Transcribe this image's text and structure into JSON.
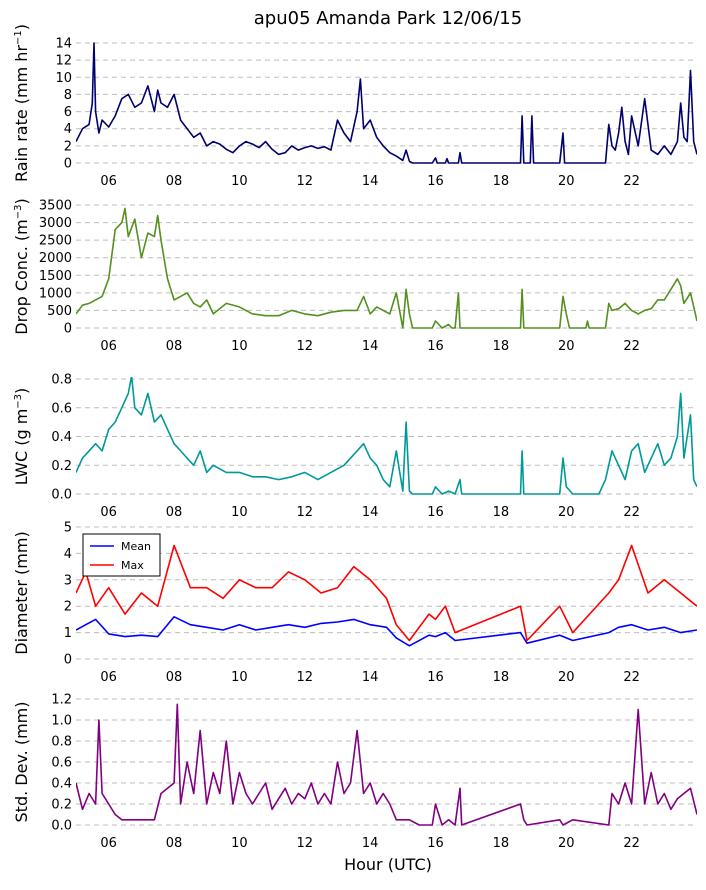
{
  "title": "apu05 Amanda Park 12/06/15",
  "xlabel": "Hour (UTC)",
  "colors": {
    "rain": "#00006e",
    "conc": "#55901f",
    "lwc": "#00999a",
    "mean": "#0000ff",
    "max": "#ff0000",
    "std": "#800080",
    "grid": "#bdbdbd"
  },
  "chart_data": [
    {
      "type": "line",
      "ylabel": "Rain rate (mm hr",
      "ylabel_sup": "−1",
      "ylabel_end": ")",
      "xlim": [
        5.0,
        24.0
      ],
      "ylim": [
        0,
        14
      ],
      "xticks": [
        "06",
        "08",
        "10",
        "12",
        "14",
        "16",
        "18",
        "20",
        "22"
      ],
      "yticks": [
        "0",
        "2",
        "4",
        "6",
        "8",
        "10",
        "12",
        "14"
      ],
      "grid": "horizontal dashed",
      "series": [
        {
          "color_key": "rain",
          "x": [
            5.0,
            5.2,
            5.4,
            5.5,
            5.55,
            5.6,
            5.7,
            5.8,
            6.0,
            6.2,
            6.4,
            6.6,
            6.8,
            7.0,
            7.2,
            7.4,
            7.5,
            7.6,
            7.8,
            8.0,
            8.2,
            8.4,
            8.6,
            8.8,
            9.0,
            9.2,
            9.4,
            9.6,
            9.8,
            10.0,
            10.2,
            10.4,
            10.6,
            10.8,
            11.0,
            11.2,
            11.4,
            11.6,
            11.8,
            12.0,
            12.2,
            12.4,
            12.6,
            12.8,
            13.0,
            13.2,
            13.4,
            13.6,
            13.7,
            13.8,
            14.0,
            14.2,
            14.4,
            14.6,
            14.8,
            15.0,
            15.1,
            15.2,
            15.3,
            15.5,
            15.9,
            16.0,
            16.05,
            16.1,
            16.3,
            16.35,
            16.4,
            16.7,
            16.75,
            16.8,
            17.0,
            18.5,
            18.6,
            18.65,
            18.7,
            18.9,
            18.95,
            19.0,
            19.2,
            19.8,
            19.9,
            19.95,
            20.0,
            20.2,
            21.0,
            21.2,
            21.3,
            21.4,
            21.5,
            21.6,
            21.7,
            21.8,
            21.9,
            22.0,
            22.2,
            22.4,
            22.6,
            22.8,
            23.0,
            23.2,
            23.4,
            23.5,
            23.6,
            23.7,
            23.8,
            23.9,
            24.0
          ],
          "y": [
            2.5,
            4.0,
            4.5,
            7.0,
            14.0,
            6.0,
            3.5,
            5.0,
            4.2,
            5.5,
            7.5,
            8.0,
            6.5,
            7.0,
            9.0,
            6.0,
            8.5,
            7.0,
            6.5,
            8.0,
            5.0,
            4.0,
            3.0,
            3.5,
            2.0,
            2.5,
            2.2,
            1.6,
            1.2,
            2.0,
            2.5,
            2.2,
            1.8,
            2.5,
            1.6,
            1.0,
            1.2,
            2.0,
            1.5,
            1.8,
            2.0,
            1.7,
            1.9,
            1.5,
            5.0,
            3.5,
            2.5,
            6.0,
            9.8,
            4.0,
            5.0,
            3.0,
            2.0,
            1.2,
            0.8,
            0.3,
            1.5,
            0.2,
            0.0,
            0.0,
            0.0,
            0.6,
            0.0,
            0.0,
            0.0,
            0.5,
            0.0,
            0.0,
            1.2,
            0.0,
            0.0,
            0.0,
            0.0,
            5.5,
            0.0,
            0.0,
            5.5,
            0.0,
            0.0,
            0.0,
            3.5,
            0.0,
            0.0,
            0.0,
            0.0,
            0.0,
            4.5,
            2.0,
            1.5,
            3.5,
            6.5,
            2.5,
            1.0,
            5.5,
            2.0,
            7.5,
            1.5,
            1.0,
            2.0,
            1.0,
            2.5,
            7.0,
            3.0,
            2.5,
            10.8,
            2.5,
            1.0
          ]
        }
      ]
    },
    {
      "type": "line",
      "ylabel": "Drop Conc. (m",
      "ylabel_sup": "−3",
      "ylabel_end": ")",
      "xlim": [
        5.0,
        24.0
      ],
      "ylim": [
        0,
        3500
      ],
      "xticks": [
        "06",
        "08",
        "10",
        "12",
        "14",
        "16",
        "18",
        "20",
        "22"
      ],
      "yticks": [
        "0",
        "500",
        "1000",
        "1500",
        "2000",
        "2500",
        "3000",
        "3500"
      ],
      "grid": "horizontal dashed",
      "series": [
        {
          "color_key": "conc",
          "x": [
            5.0,
            5.2,
            5.4,
            5.6,
            5.8,
            6.0,
            6.2,
            6.4,
            6.5,
            6.6,
            6.8,
            7.0,
            7.2,
            7.4,
            7.5,
            7.6,
            7.8,
            8.0,
            8.2,
            8.4,
            8.6,
            8.8,
            9.0,
            9.2,
            9.6,
            10.0,
            10.4,
            10.8,
            11.2,
            11.6,
            12.0,
            12.4,
            12.8,
            13.2,
            13.6,
            13.8,
            14.0,
            14.2,
            14.4,
            14.6,
            14.8,
            15.0,
            15.1,
            15.2,
            15.3,
            15.5,
            15.9,
            16.0,
            16.2,
            16.4,
            16.5,
            16.6,
            16.7,
            16.75,
            16.8,
            16.9,
            17.0,
            18.5,
            18.6,
            18.65,
            18.7,
            18.8,
            19.8,
            19.9,
            20.0,
            20.1,
            20.2,
            20.6,
            20.65,
            20.7,
            21.0,
            21.2,
            21.3,
            21.4,
            21.6,
            21.8,
            22.0,
            22.2,
            22.4,
            22.6,
            22.8,
            23.0,
            23.2,
            23.4,
            23.5,
            23.6,
            23.8,
            24.0
          ],
          "y": [
            400,
            650,
            700,
            800,
            900,
            1400,
            2800,
            3000,
            3400,
            2600,
            3100,
            2000,
            2700,
            2600,
            3200,
            2500,
            1400,
            800,
            900,
            1000,
            700,
            600,
            800,
            400,
            700,
            600,
            400,
            350,
            350,
            500,
            400,
            350,
            450,
            500,
            500,
            900,
            400,
            600,
            500,
            400,
            1000,
            0,
            1100,
            400,
            0,
            0,
            0,
            200,
            0,
            100,
            0,
            0,
            1000,
            0,
            0,
            0,
            0,
            0,
            0,
            1100,
            0,
            0,
            0,
            900,
            400,
            0,
            0,
            0,
            200,
            0,
            0,
            0,
            700,
            500,
            550,
            700,
            500,
            400,
            500,
            550,
            800,
            800,
            1100,
            1400,
            1200,
            700,
            1000,
            200
          ]
        }
      ]
    },
    {
      "type": "line",
      "ylabel": "LWC (g m",
      "ylabel_sup": "−3",
      "ylabel_end": ")",
      "xlim": [
        5.0,
        24.0
      ],
      "ylim": [
        0,
        0.8
      ],
      "xticks": [
        "06",
        "08",
        "10",
        "12",
        "14",
        "16",
        "18",
        "20",
        "22"
      ],
      "yticks": [
        "0.0",
        "0.2",
        "0.4",
        "0.6",
        "0.8"
      ],
      "grid": "horizontal dashed",
      "series": [
        {
          "color_key": "lwc",
          "x": [
            5.0,
            5.2,
            5.4,
            5.6,
            5.8,
            6.0,
            6.2,
            6.4,
            6.6,
            6.7,
            6.8,
            7.0,
            7.2,
            7.4,
            7.6,
            7.8,
            8.0,
            8.2,
            8.4,
            8.6,
            8.8,
            9.0,
            9.2,
            9.6,
            10.0,
            10.4,
            10.8,
            11.2,
            11.6,
            12.0,
            12.4,
            12.8,
            13.2,
            13.6,
            13.8,
            14.0,
            14.2,
            14.4,
            14.6,
            14.8,
            15.0,
            15.1,
            15.2,
            15.3,
            15.5,
            15.9,
            16.0,
            16.2,
            16.4,
            16.6,
            16.75,
            16.8,
            17.0,
            18.5,
            18.6,
            18.65,
            18.7,
            18.8,
            19.8,
            19.9,
            20.0,
            20.2,
            20.5,
            21.0,
            21.2,
            21.4,
            21.6,
            21.8,
            22.0,
            22.2,
            22.4,
            22.6,
            22.8,
            23.0,
            23.2,
            23.4,
            23.5,
            23.6,
            23.8,
            23.9,
            24.0
          ],
          "y": [
            0.15,
            0.25,
            0.3,
            0.35,
            0.3,
            0.45,
            0.5,
            0.6,
            0.7,
            0.82,
            0.6,
            0.55,
            0.7,
            0.5,
            0.55,
            0.45,
            0.35,
            0.3,
            0.25,
            0.2,
            0.3,
            0.15,
            0.2,
            0.15,
            0.15,
            0.12,
            0.12,
            0.1,
            0.12,
            0.15,
            0.1,
            0.15,
            0.2,
            0.3,
            0.35,
            0.25,
            0.2,
            0.1,
            0.05,
            0.3,
            0.02,
            0.5,
            0.02,
            0.0,
            0.0,
            0.0,
            0.05,
            0.0,
            0.02,
            0.0,
            0.1,
            0.0,
            0.0,
            0.0,
            0.0,
            0.3,
            0.0,
            0.0,
            0.0,
            0.25,
            0.05,
            0.0,
            0.0,
            0.0,
            0.1,
            0.3,
            0.2,
            0.1,
            0.3,
            0.35,
            0.15,
            0.25,
            0.35,
            0.2,
            0.25,
            0.4,
            0.7,
            0.25,
            0.55,
            0.1,
            0.05
          ]
        }
      ]
    },
    {
      "type": "line",
      "ylabel": "Diameter (mm)",
      "xlim": [
        5.0,
        24.0
      ],
      "ylim": [
        0,
        5
      ],
      "xticks": [
        "06",
        "08",
        "10",
        "12",
        "14",
        "16",
        "18",
        "20",
        "22"
      ],
      "yticks": [
        "0",
        "1",
        "2",
        "3",
        "4",
        "5"
      ],
      "grid": "horizontal dashed",
      "legend_position": "upper-left",
      "series": [
        {
          "name": "Mean",
          "color_key": "mean",
          "x": [
            5.0,
            5.3,
            5.6,
            6.0,
            6.5,
            7.0,
            7.5,
            8.0,
            8.5,
            9.0,
            9.5,
            10.0,
            10.5,
            11.0,
            11.5,
            12.0,
            12.5,
            13.0,
            13.5,
            14.0,
            14.5,
            14.8,
            15.2,
            15.8,
            16.0,
            16.3,
            16.6,
            18.6,
            18.8,
            19.8,
            20.2,
            21.3,
            21.6,
            22.0,
            22.5,
            23.0,
            23.5,
            24.0
          ],
          "y": [
            1.1,
            1.3,
            1.5,
            0.95,
            0.85,
            0.9,
            0.85,
            1.6,
            1.3,
            1.2,
            1.1,
            1.3,
            1.1,
            1.2,
            1.3,
            1.2,
            1.35,
            1.4,
            1.5,
            1.3,
            1.2,
            0.8,
            0.5,
            0.9,
            0.85,
            1.0,
            0.7,
            1.0,
            0.6,
            0.9,
            0.7,
            1.0,
            1.2,
            1.3,
            1.1,
            1.2,
            1.0,
            1.1
          ]
        },
        {
          "name": "Max",
          "color_key": "max",
          "x": [
            5.0,
            5.3,
            5.6,
            6.0,
            6.5,
            7.0,
            7.5,
            8.0,
            8.5,
            9.0,
            9.5,
            10.0,
            10.5,
            11.0,
            11.5,
            12.0,
            12.5,
            13.0,
            13.5,
            14.0,
            14.5,
            14.8,
            15.2,
            15.8,
            16.0,
            16.3,
            16.6,
            18.6,
            18.8,
            19.8,
            20.2,
            21.3,
            21.6,
            22.0,
            22.5,
            23.0,
            23.5,
            24.0
          ],
          "y": [
            2.5,
            3.3,
            2.0,
            2.7,
            1.7,
            2.5,
            2.0,
            4.3,
            2.7,
            2.7,
            2.3,
            3.0,
            2.7,
            2.7,
            3.3,
            3.0,
            2.5,
            2.7,
            3.5,
            3.0,
            2.3,
            1.3,
            0.7,
            1.7,
            1.5,
            2.0,
            1.0,
            2.0,
            0.7,
            2.0,
            1.0,
            2.5,
            3.0,
            4.3,
            2.5,
            3.0,
            2.5,
            2.0
          ]
        }
      ]
    },
    {
      "type": "line",
      "ylabel": "Std. Dev. (mm)",
      "xlim": [
        5.0,
        24.0
      ],
      "ylim": [
        0,
        1.2
      ],
      "xticks": [
        "06",
        "08",
        "10",
        "12",
        "14",
        "16",
        "18",
        "20",
        "22"
      ],
      "yticks": [
        "0.0",
        "0.2",
        "0.4",
        "0.6",
        "0.8",
        "1.0",
        "1.2"
      ],
      "grid": "horizontal dashed",
      "series": [
        {
          "color_key": "std",
          "x": [
            5.0,
            5.2,
            5.4,
            5.6,
            5.7,
            5.8,
            6.0,
            6.2,
            6.4,
            6.6,
            6.8,
            7.0,
            7.2,
            7.4,
            7.6,
            7.8,
            8.0,
            8.1,
            8.2,
            8.4,
            8.6,
            8.8,
            9.0,
            9.2,
            9.4,
            9.6,
            9.8,
            10.0,
            10.2,
            10.4,
            10.6,
            10.8,
            11.0,
            11.2,
            11.4,
            11.6,
            11.8,
            12.0,
            12.2,
            12.4,
            12.6,
            12.8,
            13.0,
            13.2,
            13.4,
            13.6,
            13.8,
            14.0,
            14.2,
            14.4,
            14.6,
            14.8,
            15.0,
            15.2,
            15.5,
            15.9,
            16.0,
            16.2,
            16.4,
            16.6,
            16.75,
            16.8,
            18.6,
            18.7,
            18.8,
            19.8,
            19.9,
            20.2,
            21.3,
            21.4,
            21.6,
            21.8,
            22.0,
            22.2,
            22.4,
            22.6,
            22.8,
            23.0,
            23.2,
            23.4,
            23.6,
            23.8,
            24.0
          ],
          "y": [
            0.4,
            0.15,
            0.3,
            0.2,
            1.0,
            0.3,
            0.2,
            0.1,
            0.05,
            0.05,
            0.05,
            0.05,
            0.05,
            0.05,
            0.3,
            0.35,
            0.4,
            1.15,
            0.2,
            0.6,
            0.3,
            0.9,
            0.2,
            0.5,
            0.3,
            0.8,
            0.2,
            0.5,
            0.3,
            0.2,
            0.3,
            0.4,
            0.15,
            0.25,
            0.35,
            0.2,
            0.3,
            0.25,
            0.4,
            0.2,
            0.3,
            0.2,
            0.6,
            0.3,
            0.4,
            0.9,
            0.3,
            0.4,
            0.2,
            0.3,
            0.2,
            0.05,
            0.05,
            0.05,
            0.0,
            0.0,
            0.2,
            0.0,
            0.05,
            0.0,
            0.35,
            0.0,
            0.2,
            0.05,
            0.0,
            0.05,
            0.0,
            0.05,
            0.0,
            0.3,
            0.2,
            0.4,
            0.2,
            1.1,
            0.2,
            0.5,
            0.2,
            0.3,
            0.15,
            0.25,
            0.3,
            0.35,
            0.1
          ]
        }
      ]
    }
  ]
}
